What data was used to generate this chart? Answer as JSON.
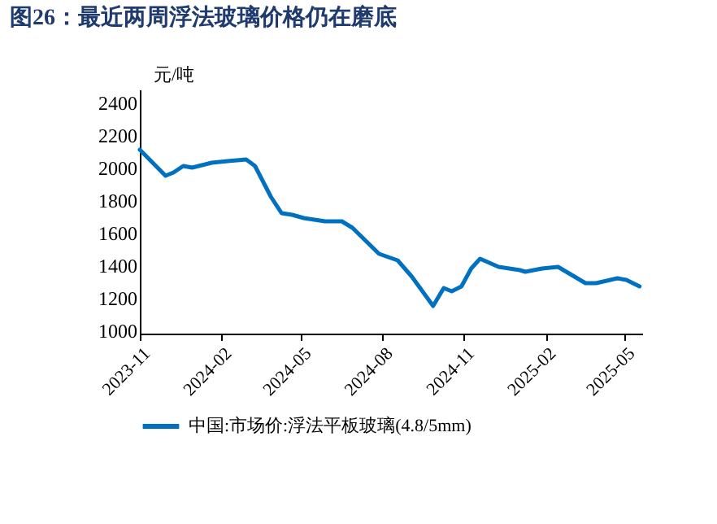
{
  "chart_data": {
    "type": "line",
    "title": "图26：最近两周浮法玻璃价格仍在磨底",
    "ylabel": "元/吨",
    "x": [
      "2023-11-01",
      "2023-11-30",
      "2023-12-09",
      "2023-12-20",
      "2023-12-30",
      "2024-01-21",
      "2024-02-08",
      "2024-02-29",
      "2024-03-10",
      "2024-03-28",
      "2024-04-09",
      "2024-04-21",
      "2024-05-04",
      "2024-05-16",
      "2024-05-28",
      "2024-06-16",
      "2024-06-28",
      "2024-07-28",
      "2024-08-18",
      "2024-09-03",
      "2024-09-27",
      "2024-10-09",
      "2024-10-18",
      "2024-10-29",
      "2024-11-09",
      "2024-11-19",
      "2024-12-10",
      "2025-01-03",
      "2025-01-09",
      "2025-01-28",
      "2025-02-15",
      "2025-03-18",
      "2025-03-30",
      "2025-04-23",
      "2025-05-03",
      "2025-05-18"
    ],
    "series": [
      {
        "name": "中国:市场价:浮法平板玻璃(4.8/5mm)",
        "color": "#0070c0",
        "values": [
          2130,
          1970,
          1990,
          2030,
          2020,
          2050,
          2060,
          2070,
          2030,
          1840,
          1740,
          1730,
          1710,
          1700,
          1690,
          1690,
          1650,
          1490,
          1450,
          1350,
          1170,
          1280,
          1260,
          1290,
          1400,
          1460,
          1410,
          1390,
          1380,
          1400,
          1410,
          1310,
          1310,
          1340,
          1330,
          1290
        ]
      }
    ],
    "xlim": [
      "2023-11-01",
      "2025-05-21"
    ],
    "xticks": [
      "2023-11",
      "2024-02",
      "2024-05",
      "2024-08",
      "2024-11",
      "2025-02",
      "2025-05"
    ],
    "ylim": [
      1000,
      2500
    ],
    "yticks": [
      1000,
      1200,
      1400,
      1600,
      1800,
      2000,
      2200,
      2400
    ],
    "grid": false,
    "legend": "bottom",
    "line_style": "solid",
    "marker": "none"
  }
}
